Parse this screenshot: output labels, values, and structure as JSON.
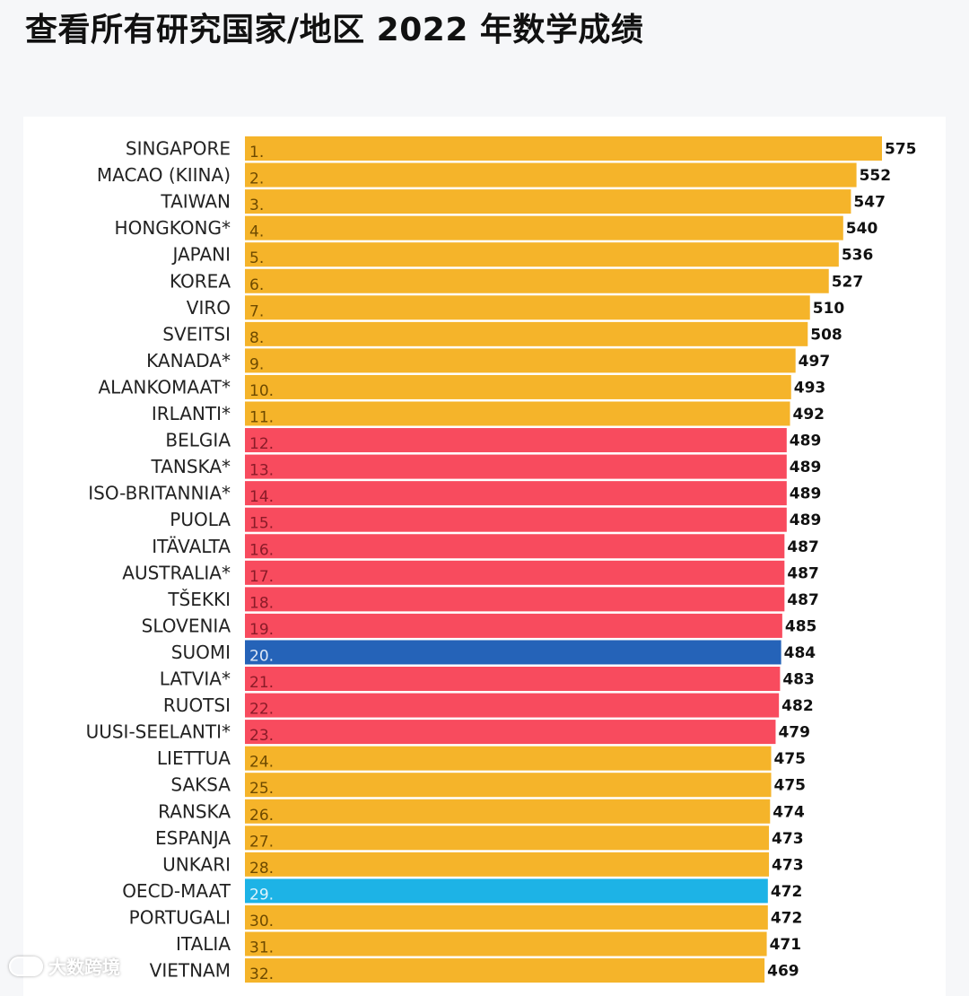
{
  "title": "查看所有研究国家/地区 2022 年数学成绩",
  "colors": {
    "default": "#f5b42a",
    "eu": "#f84b5e",
    "finland": "#2563b8",
    "oecd": "#1db3e6",
    "rank_default": "#6e4a00",
    "rank_eu": "#8a1b28",
    "rank_finland": "#dfe8f6",
    "rank_oecd": "#dff4fc"
  },
  "chart_data": {
    "type": "bar",
    "orientation": "horizontal",
    "title": "查看所有研究国家/地区 2022 年数学成绩",
    "xlim": [
      0,
      575
    ],
    "bars": [
      {
        "rank": "1.",
        "label": "SINGAPORE",
        "value": 575,
        "color": "default"
      },
      {
        "rank": "2.",
        "label": "MACAO (KIINA)",
        "value": 552,
        "color": "default"
      },
      {
        "rank": "3.",
        "label": "TAIWAN",
        "value": 547,
        "color": "default"
      },
      {
        "rank": "4.",
        "label": "HONGKONG*",
        "value": 540,
        "color": "default"
      },
      {
        "rank": "5.",
        "label": "JAPANI",
        "value": 536,
        "color": "default"
      },
      {
        "rank": "6.",
        "label": "KOREA",
        "value": 527,
        "color": "default"
      },
      {
        "rank": "7.",
        "label": "VIRO",
        "value": 510,
        "color": "default"
      },
      {
        "rank": "8.",
        "label": "SVEITSI",
        "value": 508,
        "color": "default"
      },
      {
        "rank": "9.",
        "label": "KANADA*",
        "value": 497,
        "color": "default"
      },
      {
        "rank": "10.",
        "label": "ALANKOMAAT*",
        "value": 493,
        "color": "default"
      },
      {
        "rank": "11.",
        "label": "IRLANTI*",
        "value": 492,
        "color": "default"
      },
      {
        "rank": "12.",
        "label": "BELGIA",
        "value": 489,
        "color": "eu"
      },
      {
        "rank": "13.",
        "label": "TANSKA*",
        "value": 489,
        "color": "eu"
      },
      {
        "rank": "14.",
        "label": "ISO-BRITANNIA*",
        "value": 489,
        "color": "eu"
      },
      {
        "rank": "15.",
        "label": "PUOLA",
        "value": 489,
        "color": "eu"
      },
      {
        "rank": "16.",
        "label": "ITÄVALTA",
        "value": 487,
        "color": "eu"
      },
      {
        "rank": "17.",
        "label": "AUSTRALIA*",
        "value": 487,
        "color": "eu"
      },
      {
        "rank": "18.",
        "label": "TŠEKKI",
        "value": 487,
        "color": "eu"
      },
      {
        "rank": "19.",
        "label": "SLOVENIA",
        "value": 485,
        "color": "eu"
      },
      {
        "rank": "20.",
        "label": "SUOMI",
        "value": 484,
        "color": "finland"
      },
      {
        "rank": "21.",
        "label": "LATVIA*",
        "value": 483,
        "color": "eu"
      },
      {
        "rank": "22.",
        "label": "RUOTSI",
        "value": 482,
        "color": "eu"
      },
      {
        "rank": "23.",
        "label": "UUSI-SEELANTI*",
        "value": 479,
        "color": "eu"
      },
      {
        "rank": "24.",
        "label": "LIETTUA",
        "value": 475,
        "color": "default"
      },
      {
        "rank": "25.",
        "label": "SAKSA",
        "value": 475,
        "color": "default"
      },
      {
        "rank": "26.",
        "label": "RANSKA",
        "value": 474,
        "color": "default"
      },
      {
        "rank": "27.",
        "label": "ESPANJA",
        "value": 473,
        "color": "default"
      },
      {
        "rank": "28.",
        "label": "UNKARI",
        "value": 473,
        "color": "default"
      },
      {
        "rank": "29.",
        "label": "OECD-MAAT",
        "value": 472,
        "color": "oecd"
      },
      {
        "rank": "30.",
        "label": "PORTUGALI",
        "value": 472,
        "color": "default"
      },
      {
        "rank": "31.",
        "label": "ITALIA",
        "value": 471,
        "color": "default"
      },
      {
        "rank": "32.",
        "label": "VIETNAM",
        "value": 469,
        "color": "default"
      }
    ]
  },
  "watermark": {
    "icon": "ellipse-logo-icon",
    "text": "大数跨境"
  }
}
